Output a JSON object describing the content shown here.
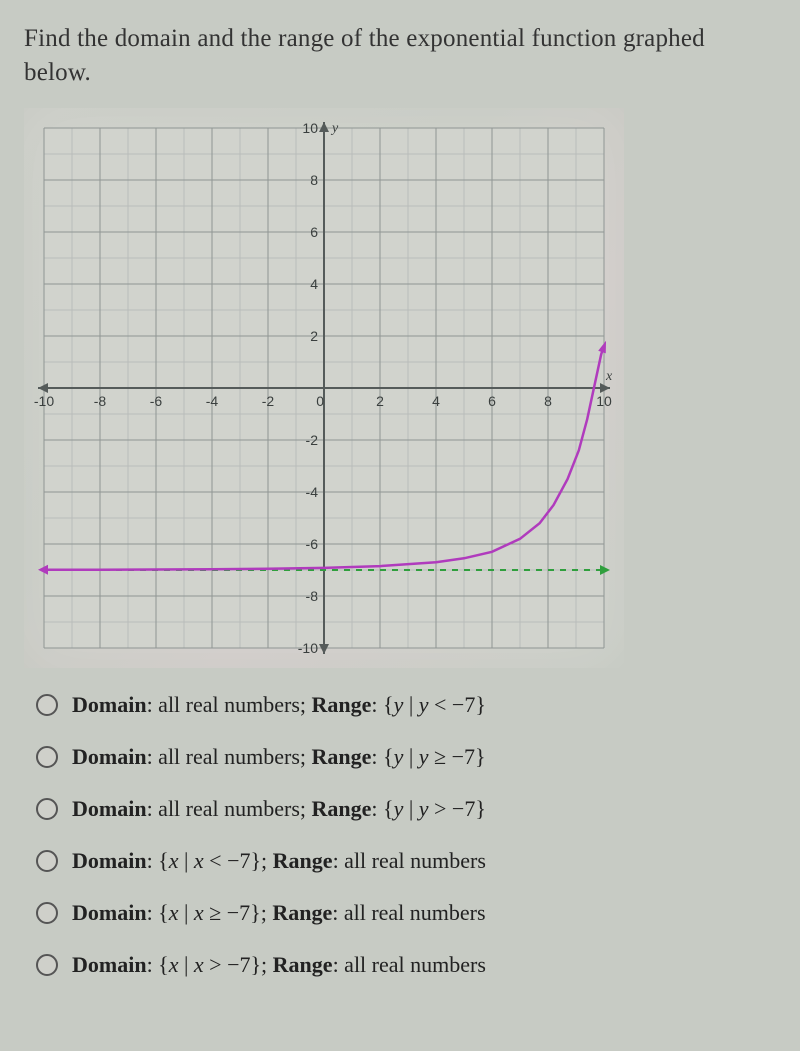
{
  "prompt": "Find the domain and the range of the exponential function graphed below.",
  "chart": {
    "type": "line",
    "xlim": [
      -10,
      10
    ],
    "ylim": [
      -10,
      10
    ],
    "xtick_step": 2,
    "ytick_step": 2,
    "x_ticks": [
      -10,
      -8,
      -6,
      -4,
      -2,
      0,
      2,
      4,
      6,
      8,
      10
    ],
    "y_ticks": [
      -10,
      -8,
      -6,
      -4,
      -2,
      0,
      2,
      4,
      6,
      8,
      10
    ],
    "grid_minor_step": 1,
    "background_color": "#d1d3cd",
    "grid_major_color": "#8f9694",
    "grid_minor_color": "#b9bdba",
    "axis_color": "#555b5a",
    "tick_label_color": "#3a3f3e",
    "tick_fontsize": 14,
    "axis_label_x": "x",
    "axis_label_y": "y",
    "asymptote": {
      "y": -7,
      "color": "#2f9f3d",
      "dash": "6,6",
      "width": 2
    },
    "curve": {
      "color": "#b03bbd",
      "width": 2.5,
      "asymptote_y": -7,
      "points": [
        [
          -10,
          -6.99
        ],
        [
          -8,
          -6.99
        ],
        [
          -6,
          -6.98
        ],
        [
          -4,
          -6.97
        ],
        [
          -2,
          -6.95
        ],
        [
          0,
          -6.92
        ],
        [
          2,
          -6.85
        ],
        [
          4,
          -6.7
        ],
        [
          5,
          -6.55
        ],
        [
          6,
          -6.3
        ],
        [
          7,
          -5.8
        ],
        [
          7.7,
          -5.2
        ],
        [
          8.2,
          -4.5
        ],
        [
          8.7,
          -3.5
        ],
        [
          9.1,
          -2.4
        ],
        [
          9.4,
          -1.2
        ],
        [
          9.6,
          -0.2
        ],
        [
          9.78,
          0.7
        ],
        [
          9.9,
          1.3
        ],
        [
          10,
          1.6
        ]
      ]
    }
  },
  "options": [
    {
      "domain_lbl": "Domain",
      "domain": "all real numbers",
      "range_lbl": "Range",
      "range": "{y | y < −7}"
    },
    {
      "domain_lbl": "Domain",
      "domain": "all real numbers",
      "range_lbl": "Range",
      "range": "{y | y ≥ −7}"
    },
    {
      "domain_lbl": "Domain",
      "domain": "all real numbers",
      "range_lbl": "Range",
      "range": "{y | y > −7}"
    },
    {
      "domain_lbl": "Domain",
      "domain": "{x | x < −7}",
      "range_lbl": "Range",
      "range": "all real numbers"
    },
    {
      "domain_lbl": "Domain",
      "domain": "{x | x ≥ −7}",
      "range_lbl": "Range",
      "range": "all real numbers"
    },
    {
      "domain_lbl": "Domain",
      "domain": "{x | x > −7}",
      "range_lbl": "Range",
      "range": "all real numbers"
    }
  ]
}
